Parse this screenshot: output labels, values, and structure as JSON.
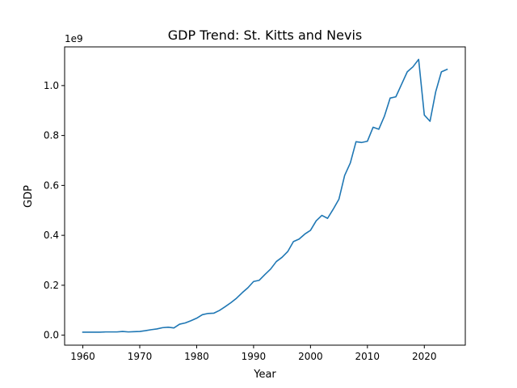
{
  "chart_data": {
    "type": "line",
    "title": "GDP Trend: St. Kitts and Nevis",
    "xlabel": "Year",
    "ylabel": "GDP",
    "y_scale_label": "1e9",
    "xlim": [
      1956.8,
      2027.2
    ],
    "ylim": [
      -0.04,
      1.155
    ],
    "y_unit_multiplier": 1000000000,
    "x_ticks": [
      1960,
      1970,
      1980,
      1990,
      2000,
      2010,
      2020
    ],
    "y_ticks": [
      0.0,
      0.2,
      0.4,
      0.6,
      0.8,
      1.0
    ],
    "y_tick_labels": [
      "0.0",
      "0.2",
      "0.4",
      "0.6",
      "0.8",
      "1.0"
    ],
    "grid": false,
    "legend": "none",
    "series": [
      {
        "color": "#1f77b4",
        "x": [
          1960,
          1961,
          1962,
          1963,
          1964,
          1965,
          1966,
          1967,
          1968,
          1969,
          1970,
          1971,
          1972,
          1973,
          1974,
          1975,
          1976,
          1977,
          1978,
          1979,
          1980,
          1981,
          1982,
          1983,
          1984,
          1985,
          1986,
          1987,
          1988,
          1989,
          1990,
          1991,
          1992,
          1993,
          1994,
          1995,
          1996,
          1997,
          1998,
          1999,
          2000,
          2001,
          2002,
          2003,
          2004,
          2005,
          2006,
          2007,
          2008,
          2009,
          2010,
          2011,
          2012,
          2013,
          2014,
          2015,
          2016,
          2017,
          2018,
          2019,
          2020,
          2021,
          2022,
          2023,
          2024
        ],
        "y": [
          0.012,
          0.012,
          0.012,
          0.012,
          0.013,
          0.013,
          0.013,
          0.015,
          0.013,
          0.014,
          0.015,
          0.018,
          0.022,
          0.025,
          0.03,
          0.032,
          0.029,
          0.044,
          0.049,
          0.058,
          0.068,
          0.082,
          0.087,
          0.088,
          0.099,
          0.114,
          0.13,
          0.148,
          0.17,
          0.19,
          0.215,
          0.22,
          0.243,
          0.265,
          0.295,
          0.312,
          0.335,
          0.375,
          0.385,
          0.405,
          0.42,
          0.458,
          0.48,
          0.468,
          0.505,
          0.545,
          0.64,
          0.69,
          0.775,
          0.772,
          0.777,
          0.833,
          0.825,
          0.878,
          0.95,
          0.955,
          1.005,
          1.055,
          1.075,
          1.105,
          0.882,
          0.857,
          0.975,
          1.055,
          1.065
        ]
      }
    ]
  }
}
